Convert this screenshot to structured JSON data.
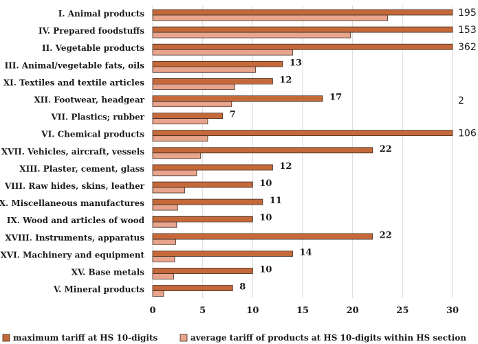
{
  "chart_data": {
    "type": "bar",
    "orientation": "horizontal",
    "categories": [
      "I. Animal products",
      "IV. Prepared foodstuffs",
      "II. Vegetable products",
      "III. Animal/vegetable fats, oils",
      "XI. Textiles and textile articles",
      "XII. Footwear, headgear",
      "VII. Plastics; rubber",
      "VI. Chemical products",
      "XVII. Vehicles, aircraft, vessels",
      "XIII. Plaster, cement, glass",
      "VIII. Raw hides, skins, leather",
      "XX. Miscellaneous manufactures",
      "IX. Wood and articles of wood",
      "XVIII. Instruments, apparatus",
      "XVI. Machinery and equipment",
      "XV. Base metals",
      "V. Mineral products"
    ],
    "series": [
      {
        "name": "maximum tariff at HS 10-digits",
        "color": "#c5693a",
        "values": [
          195,
          153,
          362,
          13,
          12,
          17,
          7,
          106,
          22,
          12,
          10,
          11,
          10,
          22,
          14,
          10,
          8
        ],
        "data_labels": [
          "195",
          "153",
          "362",
          "13",
          "12",
          "17",
          "7",
          "106",
          "22",
          "12",
          "10",
          "11",
          "10",
          "22",
          "14",
          "10",
          "8"
        ]
      },
      {
        "name": "average tariff of products at HS 10-digits within HS section",
        "color": "#e8a48c",
        "values": [
          23.5,
          19.8,
          14,
          10.3,
          8.2,
          7.9,
          5.5,
          5.5,
          4.8,
          4.4,
          3.2,
          2.5,
          2.4,
          2.3,
          2.2,
          2.1,
          1.1
        ]
      }
    ],
    "extra_label": "2",
    "xlim": [
      0,
      30
    ],
    "xticks": [
      "0",
      "5",
      "10",
      "15",
      "20",
      "25",
      "30"
    ],
    "grid": true,
    "legend_position": "bottom"
  }
}
